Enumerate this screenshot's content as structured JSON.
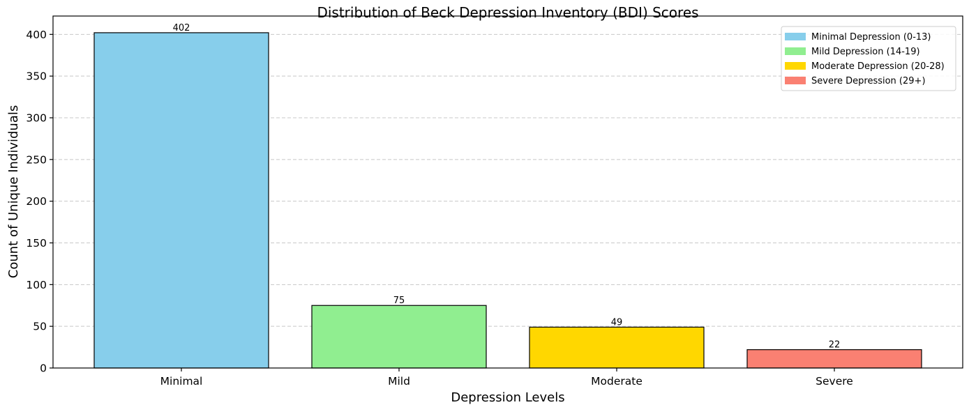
{
  "chart_data": {
    "type": "bar",
    "title": "Distribution of Beck Depression Inventory (BDI) Scores",
    "xlabel": "Depression Levels",
    "ylabel": "Count of Unique Individuals",
    "categories": [
      "Minimal",
      "Mild",
      "Moderate",
      "Severe"
    ],
    "values": [
      402,
      75,
      49,
      22
    ],
    "data_labels": [
      "402",
      "75",
      "49",
      "22"
    ],
    "colors": [
      "#87CEEB",
      "#90EE90",
      "#FFD700",
      "#FA8072"
    ],
    "ylim": [
      0,
      422
    ],
    "yticks": [
      0,
      50,
      100,
      150,
      200,
      250,
      300,
      350,
      400
    ],
    "grid": "y-dashed",
    "legend_position": "top-right",
    "legend": [
      {
        "label": "Minimal Depression (0-13)",
        "color": "#87CEEB"
      },
      {
        "label": "Mild Depression (14-19)",
        "color": "#90EE90"
      },
      {
        "label": "Moderate Depression (20-28)",
        "color": "#FFD700"
      },
      {
        "label": "Severe Depression (29+)",
        "color": "#FA8072"
      }
    ]
  }
}
